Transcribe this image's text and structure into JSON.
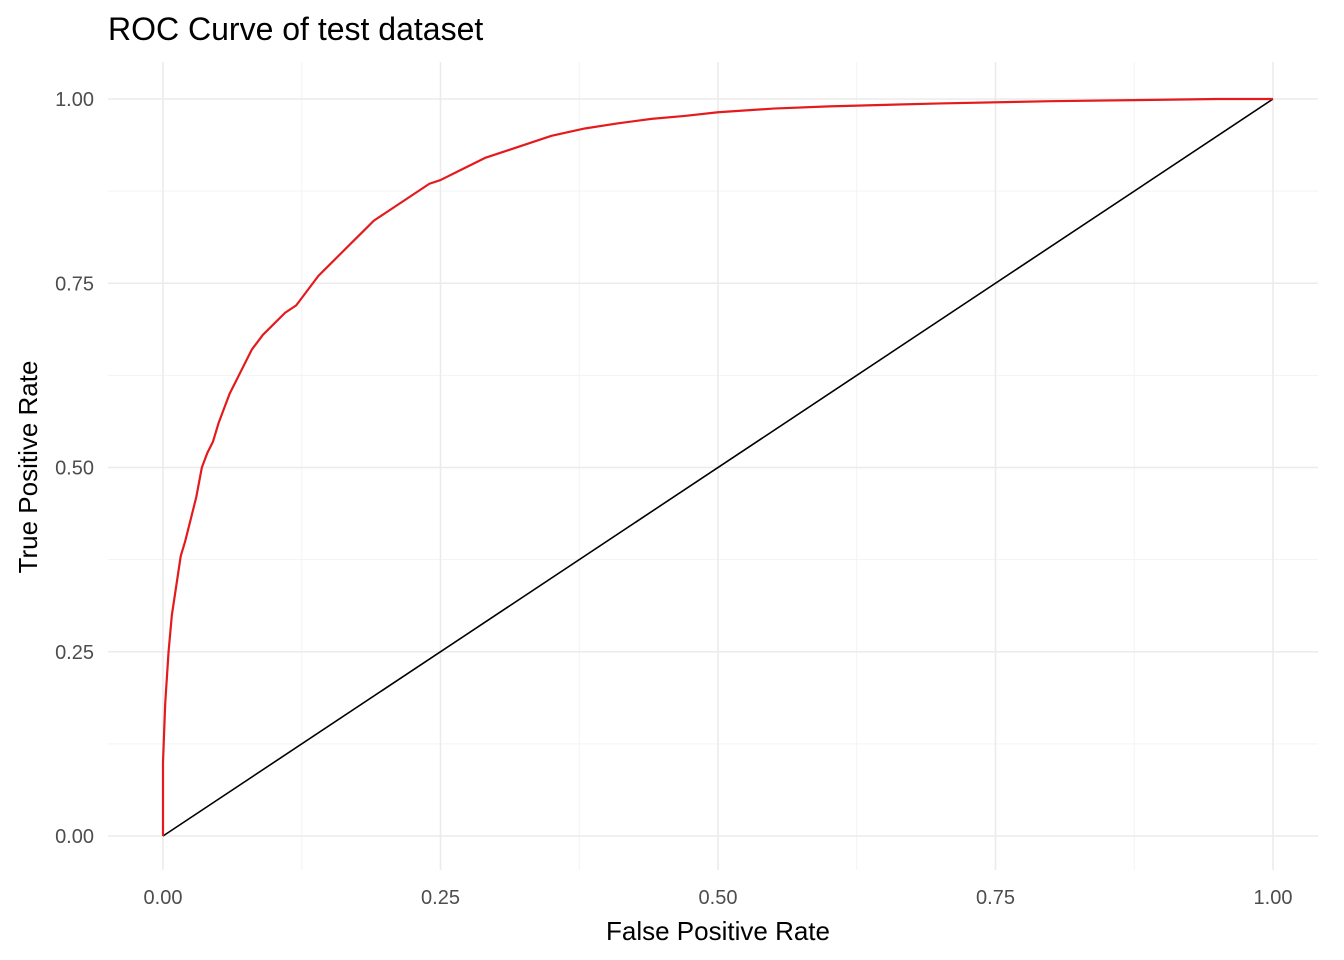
{
  "chart_data": {
    "type": "line",
    "title": "ROC Curve of test dataset",
    "xlabel": "False Positive Rate",
    "ylabel": "True Positive Rate",
    "xlim": [
      0,
      1
    ],
    "ylim": [
      0,
      1
    ],
    "x_ticks": [
      "0.00",
      "0.25",
      "0.50",
      "0.75",
      "1.00"
    ],
    "y_ticks": [
      "0.00",
      "0.25",
      "0.50",
      "0.75",
      "1.00"
    ],
    "grid": true,
    "legend": "none",
    "series": [
      {
        "color": "#e41a1c",
        "x": [
          0,
          0,
          0.002,
          0.005,
          0.008,
          0.012,
          0.016,
          0.02,
          0.025,
          0.03,
          0.035,
          0.04,
          0.045,
          0.05,
          0.055,
          0.06,
          0.065,
          0.07,
          0.08,
          0.09,
          0.1,
          0.11,
          0.12,
          0.13,
          0.14,
          0.15,
          0.16,
          0.17,
          0.18,
          0.19,
          0.2,
          0.22,
          0.24,
          0.25,
          0.27,
          0.29,
          0.31,
          0.33,
          0.35,
          0.38,
          0.41,
          0.44,
          0.47,
          0.5,
          0.55,
          0.6,
          0.7,
          0.8,
          0.9,
          0.95,
          1.0
        ],
        "y": [
          0,
          0.1,
          0.18,
          0.25,
          0.3,
          0.34,
          0.38,
          0.4,
          0.43,
          0.46,
          0.5,
          0.52,
          0.535,
          0.56,
          0.58,
          0.6,
          0.615,
          0.63,
          0.66,
          0.68,
          0.695,
          0.71,
          0.72,
          0.74,
          0.76,
          0.775,
          0.79,
          0.805,
          0.82,
          0.835,
          0.845,
          0.865,
          0.885,
          0.89,
          0.905,
          0.92,
          0.93,
          0.94,
          0.95,
          0.96,
          0.967,
          0.973,
          0.977,
          0.982,
          0.987,
          0.99,
          0.994,
          0.997,
          0.999,
          1.0,
          1.0
        ]
      },
      {
        "color": "#000000",
        "x": [
          0,
          1
        ],
        "y": [
          0,
          1
        ]
      }
    ]
  }
}
